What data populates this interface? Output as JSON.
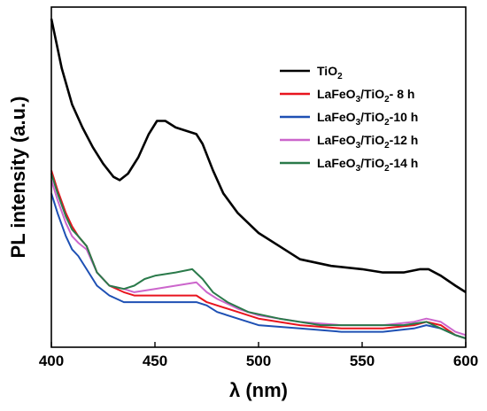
{
  "chart_data": {
    "type": "line",
    "title": "",
    "xlabel": "λ (nm)",
    "ylabel": "PL intensity (a.u.)",
    "xlim": [
      400,
      600
    ],
    "ylim": [
      0,
      100
    ],
    "xticks": [
      "400",
      "450",
      "500",
      "550",
      "600"
    ],
    "grid": false,
    "legend_position": "top-right",
    "series": [
      {
        "name": "TiO2",
        "legend_parts": [
          [
            "TiO",
            "n"
          ],
          [
            "2",
            "sub"
          ]
        ],
        "color": "#000000",
        "points": [
          [
            400,
            97
          ],
          [
            402,
            91
          ],
          [
            405,
            82
          ],
          [
            410,
            71
          ],
          [
            415,
            64
          ],
          [
            420,
            58
          ],
          [
            425,
            53
          ],
          [
            430,
            49
          ],
          [
            433,
            48
          ],
          [
            437,
            50
          ],
          [
            442,
            55
          ],
          [
            447,
            62
          ],
          [
            451,
            66
          ],
          [
            455,
            66
          ],
          [
            460,
            64
          ],
          [
            465,
            63
          ],
          [
            470,
            62
          ],
          [
            473,
            59
          ],
          [
            478,
            51
          ],
          [
            483,
            44
          ],
          [
            490,
            38
          ],
          [
            500,
            32
          ],
          [
            510,
            28
          ],
          [
            520,
            24
          ],
          [
            535,
            22
          ],
          [
            550,
            21
          ],
          [
            560,
            20
          ],
          [
            570,
            20
          ],
          [
            578,
            21
          ],
          [
            582,
            21
          ],
          [
            588,
            19
          ],
          [
            595,
            16
          ],
          [
            600,
            14
          ]
        ]
      },
      {
        "name": "LaFeO3/TiO2- 8 h",
        "legend_parts": [
          [
            "LaFeO",
            "n"
          ],
          [
            "3",
            "sub"
          ],
          [
            "/TiO",
            "n"
          ],
          [
            "2",
            "sub"
          ],
          [
            "-  8 h",
            "n"
          ]
        ],
        "color": "#e8141e",
        "points": [
          [
            400,
            51
          ],
          [
            403,
            45
          ],
          [
            407,
            38
          ],
          [
            410,
            34
          ],
          [
            413,
            31
          ],
          [
            417,
            28
          ],
          [
            422,
            20
          ],
          [
            428,
            16
          ],
          [
            435,
            14
          ],
          [
            440,
            13
          ],
          [
            450,
            13
          ],
          [
            460,
            13
          ],
          [
            470,
            13
          ],
          [
            475,
            11
          ],
          [
            480,
            10
          ],
          [
            490,
            8
          ],
          [
            500,
            6
          ],
          [
            520,
            4
          ],
          [
            540,
            3
          ],
          [
            560,
            3
          ],
          [
            575,
            4
          ],
          [
            581,
            5
          ],
          [
            588,
            4
          ],
          [
            595,
            1
          ],
          [
            600,
            0
          ]
        ]
      },
      {
        "name": "LaFeO3/TiO2-10 h",
        "legend_parts": [
          [
            "LaFeO",
            "n"
          ],
          [
            "3",
            "sub"
          ],
          [
            "/TiO",
            "n"
          ],
          [
            "2",
            "sub"
          ],
          [
            "-10 h",
            "n"
          ]
        ],
        "color": "#1e50b4",
        "points": [
          [
            400,
            44
          ],
          [
            403,
            38
          ],
          [
            407,
            31
          ],
          [
            410,
            27
          ],
          [
            413,
            25
          ],
          [
            417,
            21
          ],
          [
            422,
            16
          ],
          [
            428,
            13
          ],
          [
            435,
            11
          ],
          [
            440,
            11
          ],
          [
            450,
            11
          ],
          [
            460,
            11
          ],
          [
            470,
            11
          ],
          [
            475,
            10
          ],
          [
            480,
            8
          ],
          [
            490,
            6
          ],
          [
            500,
            4
          ],
          [
            520,
            3
          ],
          [
            540,
            2
          ],
          [
            560,
            2
          ],
          [
            575,
            3
          ],
          [
            581,
            4
          ],
          [
            588,
            3
          ],
          [
            595,
            1
          ],
          [
            600,
            0
          ]
        ]
      },
      {
        "name": "LaFeO3/TiO2-12 h",
        "legend_parts": [
          [
            "LaFeO",
            "n"
          ],
          [
            "3",
            "sub"
          ],
          [
            "/TiO",
            "n"
          ],
          [
            "2",
            "sub"
          ],
          [
            "-12 h",
            "n"
          ]
        ],
        "color": "#cc66cc",
        "points": [
          [
            400,
            48
          ],
          [
            403,
            42
          ],
          [
            407,
            35
          ],
          [
            410,
            31
          ],
          [
            413,
            29
          ],
          [
            417,
            27
          ],
          [
            422,
            20
          ],
          [
            428,
            16
          ],
          [
            435,
            15
          ],
          [
            440,
            14
          ],
          [
            450,
            15
          ],
          [
            460,
            16
          ],
          [
            470,
            17
          ],
          [
            475,
            14
          ],
          [
            480,
            12
          ],
          [
            490,
            9
          ],
          [
            500,
            7
          ],
          [
            520,
            5
          ],
          [
            540,
            4
          ],
          [
            560,
            4
          ],
          [
            575,
            5
          ],
          [
            581,
            6
          ],
          [
            588,
            5
          ],
          [
            595,
            2
          ],
          [
            600,
            1
          ]
        ]
      },
      {
        "name": "LaFeO3/TiO2-14 h",
        "legend_parts": [
          [
            "LaFeO",
            "n"
          ],
          [
            "3",
            "sub"
          ],
          [
            "/TiO",
            "n"
          ],
          [
            "2",
            "sub"
          ],
          [
            "-14 h",
            "n"
          ]
        ],
        "color": "#2a7a4a",
        "points": [
          [
            400,
            50
          ],
          [
            403,
            44
          ],
          [
            407,
            37
          ],
          [
            410,
            33
          ],
          [
            413,
            31
          ],
          [
            417,
            28
          ],
          [
            422,
            20
          ],
          [
            428,
            16
          ],
          [
            435,
            15
          ],
          [
            440,
            16
          ],
          [
            445,
            18
          ],
          [
            450,
            19
          ],
          [
            460,
            20
          ],
          [
            468,
            21
          ],
          [
            473,
            18
          ],
          [
            478,
            14
          ],
          [
            485,
            11
          ],
          [
            495,
            8
          ],
          [
            510,
            6
          ],
          [
            530,
            4
          ],
          [
            550,
            4
          ],
          [
            570,
            4
          ],
          [
            581,
            5
          ],
          [
            588,
            3
          ],
          [
            595,
            1
          ],
          [
            600,
            0
          ]
        ]
      }
    ]
  }
}
